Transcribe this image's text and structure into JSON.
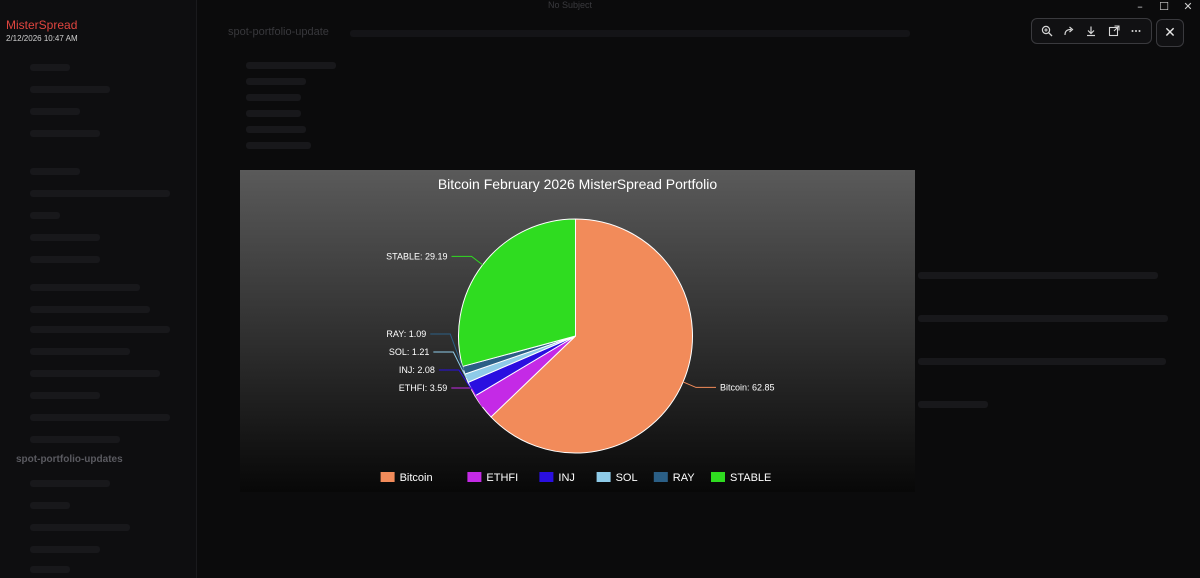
{
  "window": {
    "title": "No Subject"
  },
  "app": {
    "user_name": "MisterSpread",
    "user_time": "2/12/2026 10:47 AM",
    "channel": "spot-portfolio-updates",
    "topbar_title": "spot-portfolio-update"
  },
  "toolbar": {
    "icons": [
      "zoom-in-icon",
      "forward-icon",
      "download-icon",
      "open-external-icon",
      "more-icon"
    ],
    "close_glyph": "✕"
  },
  "colors": {
    "Bitcoin": "#f28b5a",
    "ETHFI": "#c42ae6",
    "INJ": "#2a0fe0",
    "SOL": "#8ecbe8",
    "RAY": "#2b5f86",
    "STABLE": "#2fdc20"
  },
  "chart_data": {
    "type": "pie",
    "title": "Bitcoin February 2026 MisterSpread Portfolio",
    "slices": [
      {
        "label": "Bitcoin",
        "value": 62.85,
        "data_label": "Bitcoin: 62.85"
      },
      {
        "label": "ETHFI",
        "value": 3.59,
        "data_label": "ETHFI: 3.59"
      },
      {
        "label": "INJ",
        "value": 2.08,
        "data_label": "INJ: 2.08"
      },
      {
        "label": "SOL",
        "value": 1.21,
        "data_label": "SOL: 1.21"
      },
      {
        "label": "RAY",
        "value": 1.09,
        "data_label": "RAY: 1.09"
      },
      {
        "label": "STABLE",
        "value": 29.19,
        "data_label": "STABLE: 29.19"
      }
    ],
    "legend": {
      "position": "bottom",
      "entries": [
        "Bitcoin",
        "ETHFI",
        "INJ",
        "SOL",
        "RAY",
        "STABLE"
      ]
    }
  }
}
